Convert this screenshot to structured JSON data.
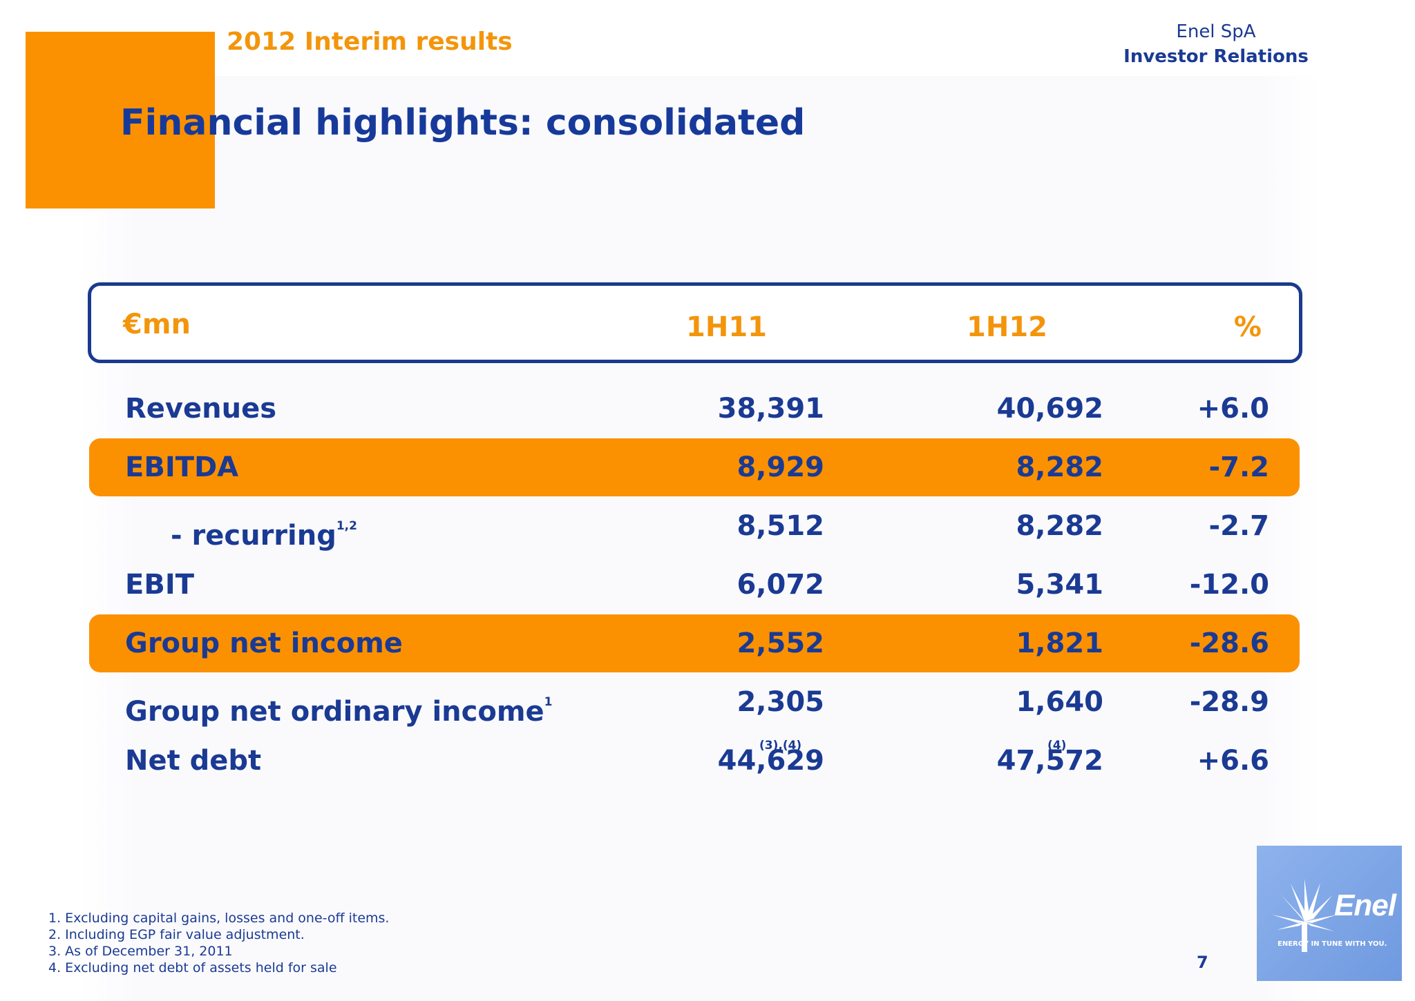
{
  "header": {
    "subtitle": "2012 Interim results",
    "company": "Enel SpA",
    "department": "Investor Relations",
    "title": "Financial highlights: consolidated"
  },
  "table": {
    "columns": [
      "€mn",
      "1H11",
      "1H12",
      "%"
    ],
    "rows": [
      {
        "label": "Revenues",
        "sup": "",
        "h1_11": "38,391",
        "h1_11_sup": "",
        "h1_12": "40,692",
        "h1_12_sup": "",
        "pct": "+6.0",
        "highlight": false
      },
      {
        "label": "EBITDA",
        "sup": "",
        "h1_11": "8,929",
        "h1_11_sup": "",
        "h1_12": "8,282",
        "h1_12_sup": "",
        "pct": "-7.2",
        "highlight": true
      },
      {
        "label": "- recurring",
        "sup": "1,2",
        "h1_11": "8,512",
        "h1_11_sup": "",
        "h1_12": "8,282",
        "h1_12_sup": "",
        "pct": "-2.7",
        "highlight": false
      },
      {
        "label": "EBIT",
        "sup": "",
        "h1_11": "6,072",
        "h1_11_sup": "",
        "h1_12": "5,341",
        "h1_12_sup": "",
        "pct": "-12.0",
        "highlight": false
      },
      {
        "label": "Group net income",
        "sup": "",
        "h1_11": "2,552",
        "h1_11_sup": "",
        "h1_12": "1,821",
        "h1_12_sup": "",
        "pct": "-28.6",
        "highlight": true
      },
      {
        "label": "Group net ordinary income",
        "sup": "1",
        "h1_11": "2,305",
        "h1_11_sup": "",
        "h1_12": "1,640",
        "h1_12_sup": "",
        "pct": "-28.9",
        "highlight": false
      },
      {
        "label": "Net debt",
        "sup": "",
        "h1_11": "44,629",
        "h1_11_sup": "(3),(4)",
        "h1_12": "47,572",
        "h1_12_sup": "(4)",
        "pct": "+6.6",
        "highlight": false
      }
    ]
  },
  "footnotes": [
    "1. Excluding capital gains, losses and one-off items.",
    "2. Including EGP fair value adjustment.",
    "3. As of December 31, 2011",
    "4. Excluding net debt of assets held for sale"
  ],
  "page_number": "7",
  "logo": {
    "word": "Enel",
    "tagline": "ENERGY IN TUNE WITH YOU."
  },
  "colors": {
    "orange": "#fb9100",
    "navy": "#1a3a93",
    "logo_blue": "#7ea6e8"
  }
}
